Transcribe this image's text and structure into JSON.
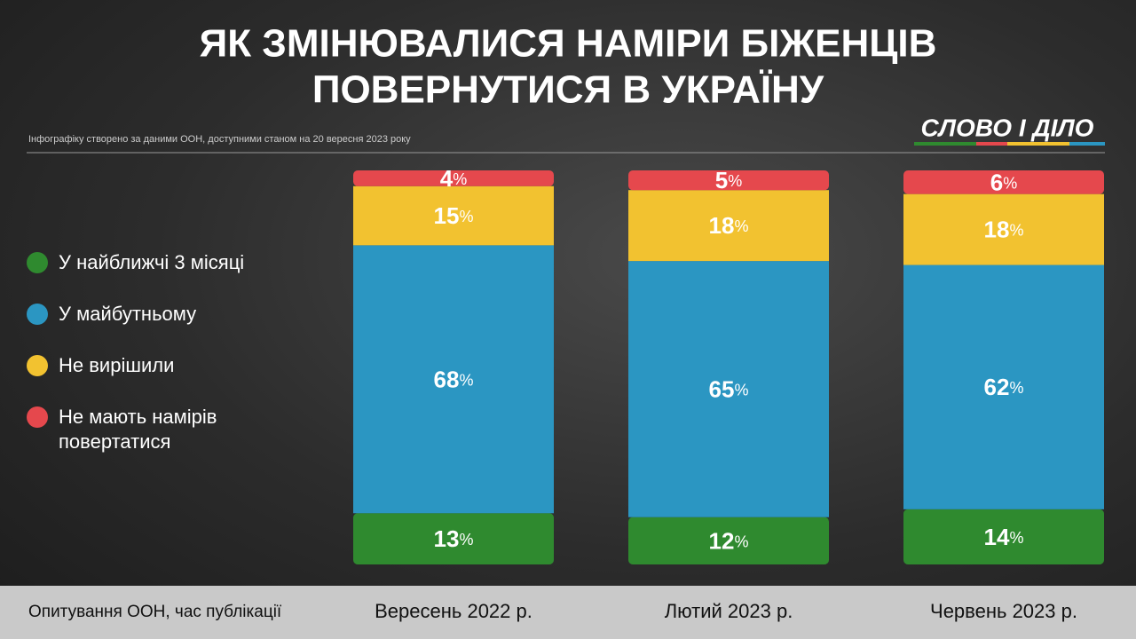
{
  "chart_data": {
    "type": "stacked_bar",
    "title": [
      "ЯК ЗМІНЮВАЛИСЯ НАМІРИ БІЖЕНЦІВ",
      "ПОВЕРНУТИСЯ В УКРАЇНУ"
    ],
    "subtitle": "Інфографіку створено за даними ООН, доступними станом на 20 вересня 2023 року",
    "brand": "СЛОВО І ДІЛО",
    "x_label": "Опитування ООН, час публікації",
    "categories": [
      "Вересень 2022 р.",
      "Лютий 2023 р.",
      "Червень 2023 р."
    ],
    "ylim": [
      0,
      100
    ],
    "series": [
      {
        "name": "У найближчі 3 місяці",
        "color": "#2f8a2f",
        "values": [
          13,
          12,
          14
        ],
        "value_labels": [
          "13%",
          "12%",
          "14%"
        ]
      },
      {
        "name": "У майбутньому",
        "color": "#2b96c2",
        "values": [
          68,
          65,
          62
        ],
        "value_labels": [
          "68%",
          "65%",
          "62%"
        ]
      },
      {
        "name": "Не вирішили",
        "color": "#f2c230",
        "values": [
          15,
          18,
          18
        ],
        "value_labels": [
          "15%",
          "18%",
          "18%"
        ]
      },
      {
        "name": "Не мають намірів повертатися",
        "color": "#e5484d",
        "values": [
          4,
          5,
          6
        ],
        "value_labels": [
          "4%",
          "5%",
          "6%"
        ]
      }
    ]
  }
}
